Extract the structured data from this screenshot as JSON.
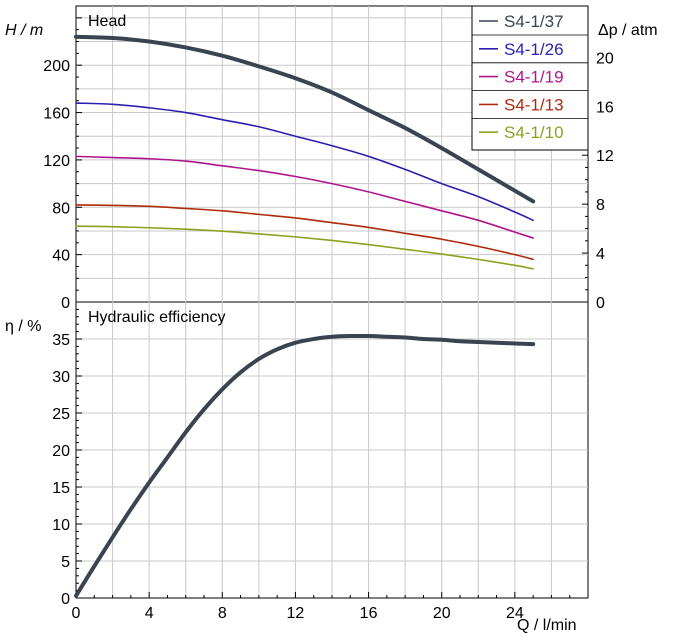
{
  "chart_data": [
    {
      "type": "line",
      "title": "Head",
      "xlabel": "Q / l/min",
      "ylabel": "H / m",
      "y2label": "Δp / atm",
      "xlim": [
        0,
        28
      ],
      "ylim": [
        0,
        250
      ],
      "y2lim": [
        0,
        24.2
      ],
      "x_ticks": [
        0,
        4,
        8,
        12,
        16,
        20,
        24
      ],
      "y_ticks": [
        0,
        40,
        80,
        120,
        160,
        200
      ],
      "y2_ticks": [
        0,
        4,
        8,
        12,
        16,
        20
      ],
      "grid": true,
      "legend": "top-right",
      "series": [
        {
          "name": "S4-1/37",
          "color": "#3a4350",
          "width": 4,
          "x": [
            0,
            2,
            4,
            6,
            8,
            10,
            12,
            14,
            16,
            18,
            20,
            22,
            24,
            25
          ],
          "y": [
            224,
            223,
            220,
            215,
            208,
            199,
            189,
            177,
            162,
            147,
            130,
            112,
            94,
            85
          ]
        },
        {
          "name": "S4-1/26",
          "color": "#2a1fb0",
          "width": 1.6,
          "x": [
            0,
            2,
            4,
            6,
            8,
            10,
            12,
            14,
            16,
            18,
            20,
            22,
            24,
            25
          ],
          "y": [
            168,
            167,
            164,
            160,
            154,
            148,
            140,
            132,
            123,
            112,
            100,
            89,
            76,
            69
          ]
        },
        {
          "name": "S4-1/19",
          "color": "#b0148c",
          "width": 1.6,
          "x": [
            0,
            2,
            4,
            6,
            8,
            10,
            12,
            14,
            16,
            18,
            20,
            22,
            24,
            25
          ],
          "y": [
            123,
            122,
            121,
            119,
            115,
            111,
            106,
            100,
            93,
            85,
            77,
            69,
            59,
            54
          ]
        },
        {
          "name": "S4-1/13",
          "color": "#b02a0a",
          "width": 1.6,
          "x": [
            0,
            2,
            4,
            6,
            8,
            10,
            12,
            14,
            16,
            18,
            20,
            22,
            24,
            25
          ],
          "y": [
            82,
            81.6,
            80.8,
            79,
            77,
            74,
            71,
            67,
            63,
            58,
            53,
            47,
            40,
            36
          ]
        },
        {
          "name": "S4-1/10",
          "color": "#8ea020",
          "width": 1.6,
          "x": [
            0,
            2,
            4,
            6,
            8,
            10,
            12,
            14,
            16,
            18,
            20,
            22,
            24,
            25
          ],
          "y": [
            64,
            63.6,
            62.7,
            61.5,
            59.8,
            57.5,
            55,
            52,
            48.5,
            44.5,
            40.5,
            36,
            31,
            28
          ]
        }
      ]
    },
    {
      "type": "line",
      "title": "Hydraulic efficiency",
      "xlabel": "Q / l/min",
      "ylabel": "η / %",
      "xlim": [
        0,
        28
      ],
      "ylim": [
        0,
        40
      ],
      "x_ticks": [
        0,
        4,
        8,
        12,
        16,
        20,
        24
      ],
      "y_ticks": [
        0,
        5,
        10,
        15,
        20,
        25,
        30,
        35
      ],
      "grid": true,
      "series": [
        {
          "name": "",
          "color": "#3a4350",
          "width": 4,
          "x": [
            0,
            1,
            2,
            3,
            4,
            5,
            6,
            7,
            8,
            9,
            10,
            11,
            12,
            13,
            14,
            15,
            16,
            17,
            18,
            19,
            20,
            21,
            22,
            23,
            24,
            25
          ],
          "y": [
            0.3,
            4.3,
            8.2,
            12,
            15.6,
            19,
            22.4,
            25.5,
            28.2,
            30.5,
            32.3,
            33.6,
            34.5,
            35,
            35.3,
            35.4,
            35.4,
            35.3,
            35.2,
            35,
            34.9,
            34.7,
            34.6,
            34.5,
            34.4,
            34.3
          ]
        }
      ]
    }
  ]
}
